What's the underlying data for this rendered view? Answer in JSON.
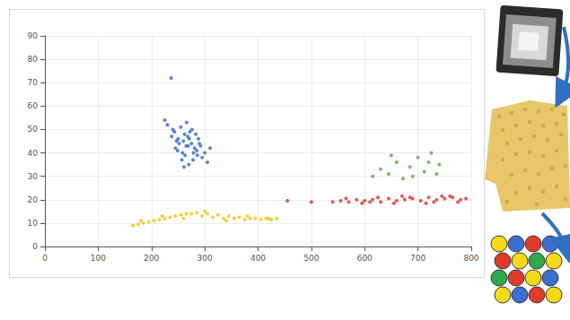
{
  "chart_data": {
    "type": "scatter",
    "xlim": [
      0,
      800
    ],
    "xticks": [
      0,
      100,
      200,
      300,
      400,
      500,
      600,
      700,
      800
    ],
    "ylim": [
      0,
      90
    ],
    "yticks": [
      0,
      10,
      20,
      30,
      40,
      50,
      60,
      70,
      80,
      90
    ],
    "grid": true,
    "series": [
      {
        "color": "#3a6fd1",
        "x": [
          269,
          250,
          285,
          262,
          240,
          295,
          275,
          258,
          230,
          305,
          268,
          281,
          247,
          290,
          263,
          272,
          255,
          238,
          300,
          278,
          265,
          249,
          288,
          270,
          260,
          283,
          245,
          276,
          292,
          257,
          266,
          279,
          252,
          271,
          286,
          243,
          261,
          310,
          225,
          237
        ],
        "values": [
          43,
          46,
          41,
          48,
          50,
          38,
          44,
          40,
          52,
          36,
          47,
          42,
          45,
          44,
          39,
          49,
          51,
          47,
          40,
          37,
          43,
          41,
          46,
          35,
          45,
          48,
          42,
          50,
          43,
          37,
          53,
          40,
          44,
          46,
          39,
          49,
          34,
          42,
          54,
          72
        ]
      },
      {
        "color": "#f5c518",
        "x": [
          165,
          175,
          185,
          195,
          205,
          215,
          225,
          235,
          245,
          255,
          265,
          275,
          285,
          295,
          305,
          315,
          325,
          335,
          345,
          355,
          365,
          375,
          385,
          395,
          405,
          415,
          425,
          435,
          180,
          220,
          260,
          300,
          340,
          380,
          420
        ],
        "values": [
          9,
          9.5,
          10,
          10.5,
          11,
          11.5,
          12,
          12.5,
          13,
          13.5,
          14,
          14,
          14.5,
          13,
          14,
          12.5,
          13.5,
          12,
          13,
          12,
          12.5,
          11.5,
          12,
          12,
          11.5,
          12,
          11.5,
          12,
          11,
          13,
          12,
          15,
          11,
          13,
          12
        ]
      },
      {
        "color": "#e0352b",
        "x": [
          540,
          555,
          570,
          585,
          600,
          615,
          630,
          645,
          660,
          675,
          690,
          705,
          720,
          735,
          750,
          765,
          780,
          790,
          565,
          595,
          625,
          655,
          685,
          715,
          745,
          775,
          610,
          670,
          730,
          760,
          455,
          500
        ],
        "values": [
          19,
          19.5,
          19,
          20,
          19.5,
          20,
          19,
          20.5,
          19.5,
          20,
          20.5,
          19.5,
          21,
          20,
          20.5,
          21,
          20,
          20.5,
          20.5,
          18.5,
          21,
          18.5,
          21,
          18.5,
          21.5,
          19,
          19,
          21.5,
          19,
          21.5,
          19.5,
          19
        ]
      },
      {
        "color": "#6aa84f",
        "x": [
          615,
          630,
          645,
          660,
          672,
          685,
          700,
          712,
          725,
          740,
          650,
          690,
          720,
          735
        ],
        "values": [
          30,
          33,
          31,
          36,
          29,
          34,
          38,
          32,
          40,
          35,
          39,
          30,
          36,
          31
        ]
      }
    ]
  }
}
